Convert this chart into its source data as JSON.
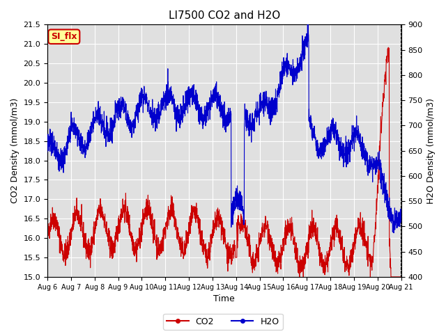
{
  "title": "LI7500 CO2 and H2O",
  "xlabel": "Time",
  "ylabel_left": "CO2 Density (mmol/m3)",
  "ylabel_right": "H2O Density (mmol/m3)",
  "ylim_left": [
    15.0,
    21.5
  ],
  "ylim_right": [
    400,
    900
  ],
  "yticks_left": [
    15.0,
    15.5,
    16.0,
    16.5,
    17.0,
    17.5,
    18.0,
    18.5,
    19.0,
    19.5,
    20.0,
    20.5,
    21.0,
    21.5
  ],
  "yticks_right": [
    400,
    450,
    500,
    550,
    600,
    650,
    700,
    750,
    800,
    850,
    900
  ],
  "xtick_labels": [
    "Aug 6",
    "Aug 7",
    "Aug 8",
    "Aug 9",
    "Aug 10",
    "Aug 11",
    "Aug 12",
    "Aug 13",
    "Aug 14",
    "Aug 15",
    "Aug 16",
    "Aug 17",
    "Aug 18",
    "Aug 19",
    "Aug 20",
    "Aug 21"
  ],
  "co2_color": "#cc0000",
  "h2o_color": "#0000cc",
  "annotation_text": "SI_flx",
  "annotation_bg": "#ffff99",
  "annotation_border": "#cc0000",
  "bg_color": "#e0e0e0",
  "legend_co2": "CO2",
  "legend_h2o": "H2O"
}
